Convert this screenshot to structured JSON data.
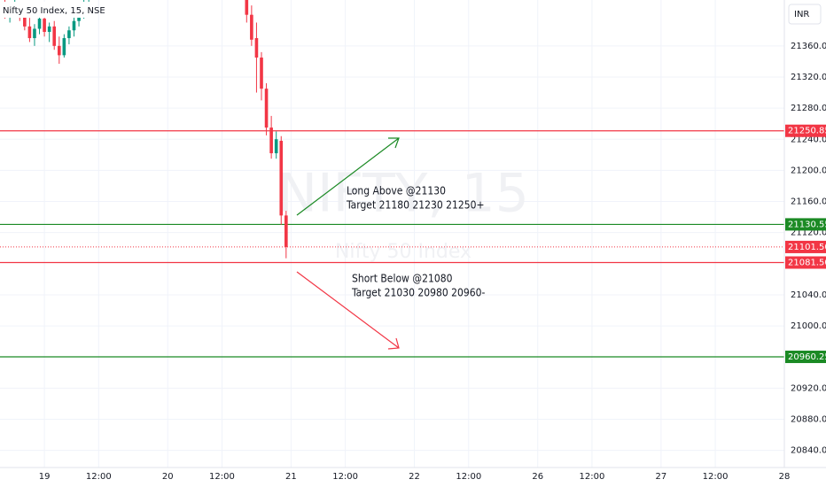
{
  "chart_data": {
    "type": "candlestick",
    "title": "Nifty 50 Index, 15, NSE",
    "currency": "INR",
    "watermark": "NIFTY, 15",
    "watermark_subtitle": "Nifty 50 Index",
    "up_color": "#089981",
    "down_color": "#f23645",
    "grid": true,
    "x": [
      -8,
      -7,
      -6,
      -5,
      -4,
      -3,
      -2,
      -1,
      0,
      1,
      2,
      3,
      4,
      5,
      6,
      7,
      8,
      9,
      41,
      42,
      43,
      44,
      45,
      46,
      47,
      48,
      49
    ],
    "open": [
      21410,
      21400,
      21405,
      21410,
      21398,
      21385,
      21370,
      21382,
      21395,
      21378,
      21385,
      21360,
      21348,
      21370,
      21380,
      21392,
      21402,
      21408,
      21430,
      21400,
      21370,
      21345,
      21305,
      21255,
      21222,
      21238,
      21142
    ],
    "high": [
      21419,
      21412,
      21419,
      21416,
      21406,
      21396,
      21388,
      21400,
      21402,
      21390,
      21392,
      21372,
      21375,
      21385,
      21398,
      21410,
      21419,
      21419,
      21440,
      21412,
      21390,
      21352,
      21312,
      21270,
      21250,
      21244,
      21148
    ],
    "low": [
      21395,
      21390,
      21398,
      21392,
      21380,
      21365,
      21360,
      21375,
      21372,
      21365,
      21355,
      21337,
      21345,
      21362,
      21372,
      21385,
      21395,
      21400,
      21390,
      21360,
      21300,
      21290,
      21245,
      21215,
      21215,
      21130,
      21087
    ],
    "close": [
      21400,
      21405,
      21410,
      21398,
      21385,
      21370,
      21382,
      21395,
      21378,
      21385,
      21360,
      21348,
      21370,
      21380,
      21392,
      21402,
      21408,
      21415,
      21400,
      21368,
      21345,
      21305,
      21255,
      21222,
      21240,
      21142,
      21101.5
    ],
    "xlim": [
      -9,
      150
    ],
    "xticks": [
      {
        "value": 0,
        "label": "19"
      },
      {
        "value": 11,
        "label": "12:00"
      },
      {
        "value": 25,
        "label": "20"
      },
      {
        "value": 36,
        "label": "12:00"
      },
      {
        "value": 50,
        "label": "21"
      },
      {
        "value": 61,
        "label": "12:00"
      },
      {
        "value": 75,
        "label": "22"
      },
      {
        "value": 86,
        "label": "12:00"
      },
      {
        "value": 100,
        "label": "26"
      },
      {
        "value": 111,
        "label": "12:00"
      },
      {
        "value": 125,
        "label": "27"
      },
      {
        "value": 136,
        "label": "12:00"
      },
      {
        "value": 150,
        "label": "28"
      }
    ],
    "ylim": [
      20818,
      21419
    ],
    "yticks": [
      {
        "value": 20840,
        "label": "20840.00"
      },
      {
        "value": 20880,
        "label": "20880.00"
      },
      {
        "value": 20920,
        "label": "20920.00"
      },
      {
        "value": 21000,
        "label": "21000.00"
      },
      {
        "value": 21040,
        "label": "21040.00"
      },
      {
        "value": 21120,
        "label": "21120.00"
      },
      {
        "value": 21160,
        "label": "21160.00"
      },
      {
        "value": 21200,
        "label": "21200.00"
      },
      {
        "value": 21240,
        "label": "21240.00"
      },
      {
        "value": 21280,
        "label": "21280.00"
      },
      {
        "value": 21320,
        "label": "21320.00"
      },
      {
        "value": 21360,
        "label": "21360.00"
      }
    ],
    "price_lines": [
      {
        "value": 21250.85,
        "label": "21250.85",
        "color": "#f23645",
        "line_style": "solid"
      },
      {
        "value": 21130.55,
        "label": "21130.55",
        "color": "#1b8a24",
        "line_style": "solid"
      },
      {
        "value": 21101.5,
        "label": "21101.50",
        "color": "#f23645",
        "line_style": "dotted"
      },
      {
        "value": 21081.5,
        "label": "21081.50",
        "color": "#f23645",
        "line_style": "solid"
      },
      {
        "value": 20960.25,
        "label": "20960.25",
        "color": "#1b8a24",
        "line_style": "solid"
      }
    ],
    "annotations": [
      {
        "text": "Long Above @21130",
        "color": "#1b8a24"
      },
      {
        "text": "Target 21180 21230 21250+",
        "color": "#1b8a24"
      },
      {
        "text": "Short Below @21080",
        "color": "#f23645"
      },
      {
        "text": "Target 21030 20980 20960-",
        "color": "#f23645"
      }
    ]
  }
}
